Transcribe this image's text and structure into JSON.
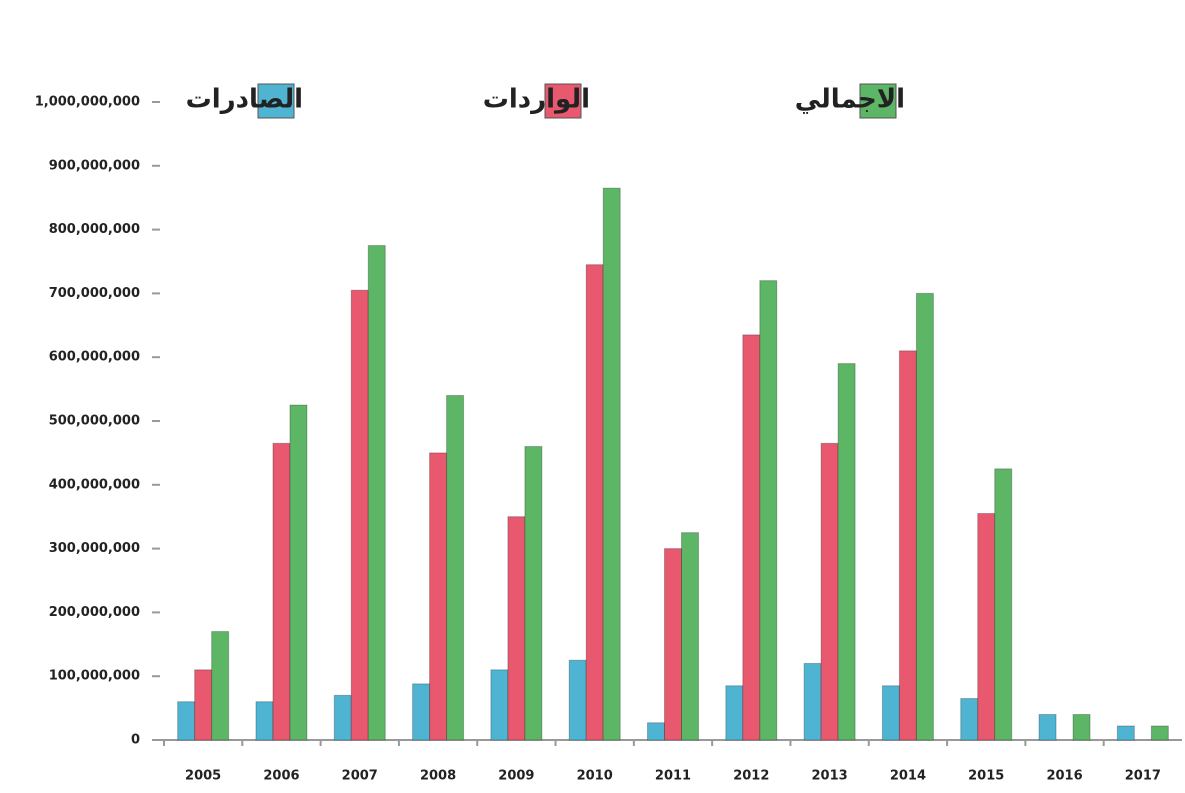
{
  "chart_data": {
    "type": "bar",
    "categories": [
      "2005",
      "2006",
      "2007",
      "2008",
      "2009",
      "2010",
      "2011",
      "2012",
      "2013",
      "2014",
      "2015",
      "2016",
      "2017"
    ],
    "series": [
      {
        "name": "الصادرات",
        "color": "#4fb4d2",
        "values": [
          60000000,
          60000000,
          70000000,
          88000000,
          110000000,
          125000000,
          27000000,
          85000000,
          120000000,
          85000000,
          65000000,
          40000000,
          22000000
        ]
      },
      {
        "name": "الواردات",
        "color": "#e8596f",
        "values": [
          110000000,
          465000000,
          705000000,
          450000000,
          350000000,
          745000000,
          300000000,
          635000000,
          465000000,
          610000000,
          355000000,
          0,
          0
        ]
      },
      {
        "name": "الاجمالي",
        "color": "#5db566",
        "values": [
          170000000,
          525000000,
          775000000,
          540000000,
          460000000,
          865000000,
          325000000,
          720000000,
          590000000,
          700000000,
          425000000,
          40000000,
          22000000
        ]
      }
    ],
    "ylim": [
      0,
      1000000000
    ],
    "yticks": [
      0,
      {
        "value": 100000000,
        "label": "100,000,000"
      },
      {
        "value": 200000000,
        "label": "200,000,000"
      },
      {
        "value": 300000000,
        "label": "300,000,000"
      },
      {
        "value": 400000000,
        "label": "400,000,000"
      },
      {
        "value": 500000000,
        "label": "500,000,000"
      },
      {
        "value": 600000000,
        "label": "600,000,000"
      },
      {
        "value": 700000000,
        "label": "700,000,000"
      },
      {
        "value": 800000000,
        "label": "800,000,000"
      },
      {
        "value": 900000000,
        "label": "900,000,000"
      },
      {
        "value": 1000000000,
        "label": "1,000,000,000"
      }
    ],
    "legend": "top"
  }
}
